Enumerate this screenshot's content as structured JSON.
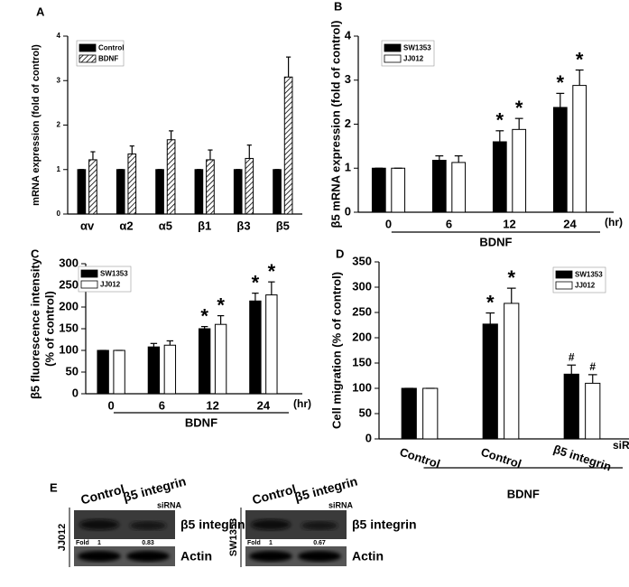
{
  "chart_data": [
    {
      "type": "bar",
      "panel": "A",
      "ylabel": [
        "mRNA expression (fold of control)"
      ],
      "categories": [
        "αv",
        "α2",
        "α5",
        "β1",
        "β3",
        "β5"
      ],
      "ylim": [
        0,
        4
      ],
      "yticks": [
        0,
        1,
        2,
        3,
        4
      ],
      "legend": "upper-left",
      "series": [
        {
          "name": "Control",
          "color": "#000000",
          "values": [
            1,
            1,
            1,
            1,
            1,
            1
          ],
          "errors": [
            0,
            0,
            0,
            0,
            0,
            0
          ]
        },
        {
          "name": "BDNF",
          "color": "#000000",
          "hatch": true,
          "values": [
            1.22,
            1.35,
            1.67,
            1.22,
            1.25,
            3.08
          ],
          "errors": [
            0.18,
            0.18,
            0.2,
            0.22,
            0.3,
            0.45
          ]
        }
      ]
    },
    {
      "type": "bar",
      "panel": "B",
      "ylabel": [
        "β5 mRNA expression (fold of control)"
      ],
      "categories": [
        "0",
        "6",
        "12",
        "24"
      ],
      "x_unit": "(hr)",
      "group_label": "BDNF",
      "ylim": [
        0,
        4
      ],
      "yticks": [
        0,
        1,
        2,
        3,
        4
      ],
      "legend": "upper-left",
      "series": [
        {
          "name": "SW1353",
          "color": "#000000",
          "values": [
            1,
            1.18,
            1.6,
            2.38
          ],
          "errors": [
            0,
            0.1,
            0.25,
            0.32
          ],
          "markers": [
            null,
            null,
            "*",
            "*"
          ]
        },
        {
          "name": "JJ012",
          "color": "#ffffff",
          "values": [
            1,
            1.13,
            1.88,
            2.88
          ],
          "errors": [
            0,
            0.15,
            0.25,
            0.35
          ],
          "markers": [
            null,
            null,
            "*",
            "*"
          ]
        }
      ]
    },
    {
      "type": "bar",
      "panel": "C",
      "ylabel": [
        "β5 fluorescence intensity",
        "(% of control)"
      ],
      "categories": [
        "0",
        "6",
        "12",
        "24"
      ],
      "x_unit": "(hr)",
      "group_label": "BDNF",
      "ylim": [
        0,
        300
      ],
      "yticks": [
        0,
        50,
        100,
        150,
        200,
        250,
        300
      ],
      "legend": "upper-left",
      "series": [
        {
          "name": "SW1353",
          "color": "#000000",
          "values": [
            100,
            108,
            150,
            214
          ],
          "errors": [
            0,
            8,
            5,
            18
          ],
          "markers": [
            null,
            null,
            "*",
            "*"
          ]
        },
        {
          "name": "JJ012",
          "color": "#ffffff",
          "values": [
            100,
            112,
            160,
            228
          ],
          "errors": [
            0,
            10,
            20,
            30
          ],
          "markers": [
            null,
            null,
            "*",
            "*"
          ]
        }
      ]
    },
    {
      "type": "bar",
      "panel": "D",
      "ylabel": [
        "Cell migration (% of control)"
      ],
      "categories": [
        "Control",
        "Control",
        "β5 integrin"
      ],
      "x_unit": "siRNA",
      "group_label": "BDNF",
      "ylim": [
        0,
        350
      ],
      "yticks": [
        0,
        50,
        100,
        150,
        200,
        250,
        300,
        350
      ],
      "legend": "upper-right",
      "series": [
        {
          "name": "SW1353",
          "color": "#000000",
          "values": [
            100,
            227,
            128
          ],
          "errors": [
            0,
            22,
            18
          ],
          "markers": [
            null,
            "*",
            "#"
          ]
        },
        {
          "name": "JJ012",
          "color": "#ffffff",
          "values": [
            100,
            268,
            110
          ],
          "errors": [
            0,
            30,
            17
          ],
          "markers": [
            null,
            "*",
            "#"
          ]
        }
      ]
    }
  ],
  "blots": {
    "panel": "E",
    "items": [
      {
        "cell_line": "JJ012",
        "lanes": [
          "Control",
          "β5 integrin"
        ],
        "lane_note": "siRNA",
        "band": "β5 integrin",
        "loading": "Actin",
        "fold_label": "Fold",
        "fold": [
          1,
          0.83
        ]
      },
      {
        "cell_line": "SW1353",
        "lanes": [
          "Control",
          "β5 integrin"
        ],
        "lane_note": "siRNA",
        "band": "β5 integrin",
        "loading": "Actin",
        "fold_label": "Fold",
        "fold": [
          1,
          0.67
        ]
      }
    ]
  }
}
